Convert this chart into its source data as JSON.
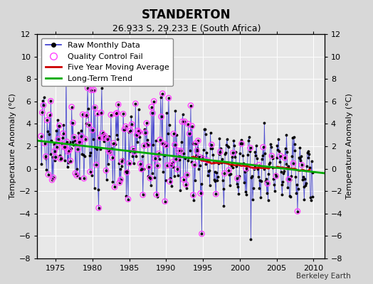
{
  "title": "STANDERTON",
  "subtitle": "26.933 S, 29.233 E (South Africa)",
  "ylabel": "Temperature Anomaly (°C)",
  "credit": "Berkeley Earth",
  "xlim": [
    1972.5,
    2011.5
  ],
  "ylim": [
    -8,
    12
  ],
  "yticks": [
    -8,
    -6,
    -4,
    -2,
    0,
    2,
    4,
    6,
    8,
    10,
    12
  ],
  "xticks": [
    1975,
    1980,
    1985,
    1990,
    1995,
    2000,
    2005,
    2010
  ],
  "trend_x0": 1972.5,
  "trend_x1": 2011.5,
  "trend_y0": 2.5,
  "trend_y1": -0.4,
  "mavg_start": 1993.5,
  "mavg_end": 2009.5,
  "bg_color": "#d8d8d8",
  "plot_bg": "#e8e8e8",
  "grid_color": "#ffffff",
  "raw_line_color": "#3333cc",
  "raw_marker_color": "#000000",
  "qc_color": "#ff44ff",
  "mavg_color": "#cc0000",
  "trend_color": "#00aa00",
  "title_fontsize": 12,
  "subtitle_fontsize": 9,
  "tick_fontsize": 8,
  "legend_fontsize": 8,
  "ylabel_fontsize": 8
}
